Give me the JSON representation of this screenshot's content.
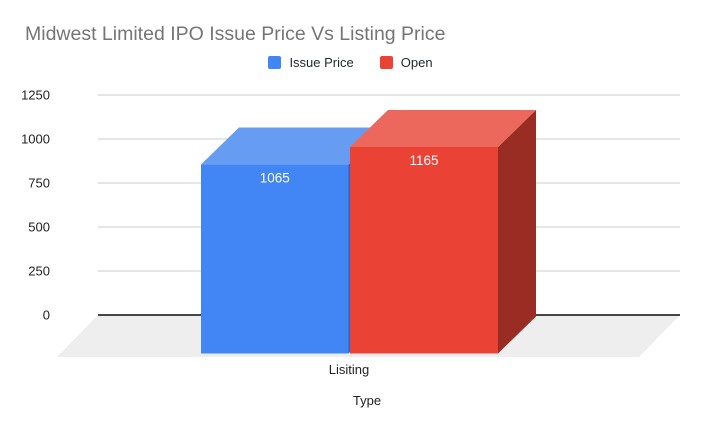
{
  "title": "Midwest Limited IPO Issue Price Vs Listing Price",
  "legend": [
    {
      "label": "Issue Price",
      "color": "#4285f4"
    },
    {
      "label": "Open",
      "color": "#ea4335"
    }
  ],
  "chart_data": {
    "type": "bar",
    "subtype": "3d-column",
    "title": "Midwest Limited IPO Issue Price Vs Listing Price",
    "categories": [
      "Lisiting"
    ],
    "series": [
      {
        "name": "Issue Price",
        "values": [
          1065
        ],
        "color": "#4285f4",
        "top_color": "#669df3",
        "side_color": "#2f62c4"
      },
      {
        "name": "Open",
        "values": [
          1165
        ],
        "color": "#ea4335",
        "top_color": "#ec685c",
        "side_color": "#9a2d23"
      }
    ],
    "data_labels": [
      1065,
      1165
    ],
    "xlabel": "Type",
    "ylabel": "",
    "ylim": [
      0,
      1250
    ],
    "yticks": [
      0,
      250,
      500,
      750,
      1000,
      1250
    ],
    "grid": true,
    "legend_position": "top"
  },
  "colors": {
    "background": "#ffffff",
    "title_text": "#757575",
    "legend_text": "#24292e",
    "tick_text": "#222222",
    "gridline": "#cccccc",
    "axis_line": "#2b2b2b",
    "floor": "#eeeeee",
    "bar_label_text": "#ffffff"
  }
}
